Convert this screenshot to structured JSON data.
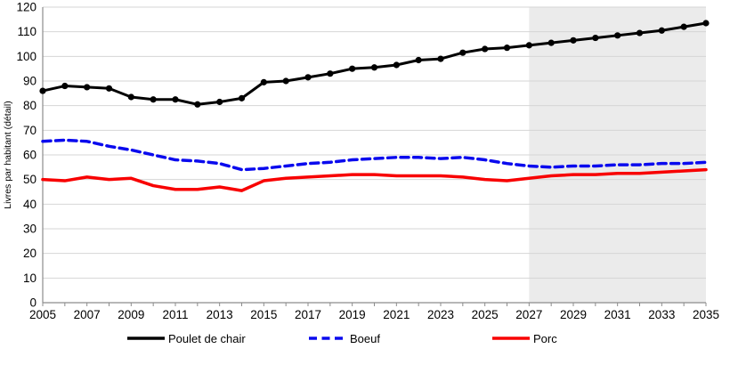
{
  "page": {
    "background": "#ffffff"
  },
  "chart_data": {
    "type": "line",
    "title": "",
    "xlabel": "",
    "ylabel": "Livres par habitant (détail)",
    "ylim": [
      0,
      120
    ],
    "ytick_step": 10,
    "grid": "horizontal",
    "gridline_color": "#d6d6d6",
    "axis_color": "#8c8c8c",
    "tick_label_color": "#000000",
    "legend_position": "bottom",
    "forecast_region": {
      "start_x": 2027,
      "end_x": 2035,
      "color": "#ebebeb"
    },
    "x": [
      2005,
      2006,
      2007,
      2008,
      2009,
      2010,
      2011,
      2012,
      2013,
      2014,
      2015,
      2016,
      2017,
      2018,
      2019,
      2020,
      2021,
      2022,
      2023,
      2024,
      2025,
      2026,
      2027,
      2028,
      2029,
      2030,
      2031,
      2032,
      2033,
      2034,
      2035
    ],
    "xtick_labels": [
      "2005",
      "2007",
      "2009",
      "2011",
      "2013",
      "2015",
      "2017",
      "2019",
      "2021",
      "2023",
      "2025",
      "2027",
      "2029",
      "2031",
      "2033",
      "2035"
    ],
    "series": [
      {
        "name": "Poulet de chair",
        "color": "#000000",
        "line_style": "solid",
        "line_width": 3,
        "marker": "circle",
        "values": [
          86,
          88,
          87.5,
          87,
          83.5,
          82.5,
          82.5,
          80.5,
          81.5,
          83,
          89.5,
          90,
          91.5,
          93,
          95,
          95.5,
          96.5,
          98.5,
          99,
          101.5,
          103,
          103.5,
          104.5,
          105.5,
          106.5,
          107.5,
          108.5,
          109.5,
          110.5,
          112,
          113.5
        ]
      },
      {
        "name": "Boeuf",
        "color": "#0a0aee",
        "line_style": "dashed",
        "line_width": 3.5,
        "marker": "none",
        "values": [
          65.5,
          66,
          65.5,
          63.5,
          62,
          60,
          58,
          57.5,
          56.5,
          54,
          54.5,
          55.5,
          56.5,
          57,
          58,
          58.5,
          59,
          59,
          58.5,
          59,
          58,
          56.5,
          55.5,
          55,
          55.5,
          55.5,
          56,
          56,
          56.5,
          56.5,
          57
        ]
      },
      {
        "name": "Porc",
        "color": "#f80000",
        "line_style": "solid",
        "line_width": 3.5,
        "marker": "none",
        "values": [
          50,
          49.5,
          51,
          50,
          50.5,
          47.5,
          46,
          46,
          47,
          45.5,
          49.5,
          50.5,
          51,
          51.5,
          52,
          52,
          51.5,
          51.5,
          51.5,
          51,
          50,
          49.5,
          50.5,
          51.5,
          52,
          52,
          52.5,
          52.5,
          53,
          53.5,
          54
        ]
      }
    ]
  }
}
